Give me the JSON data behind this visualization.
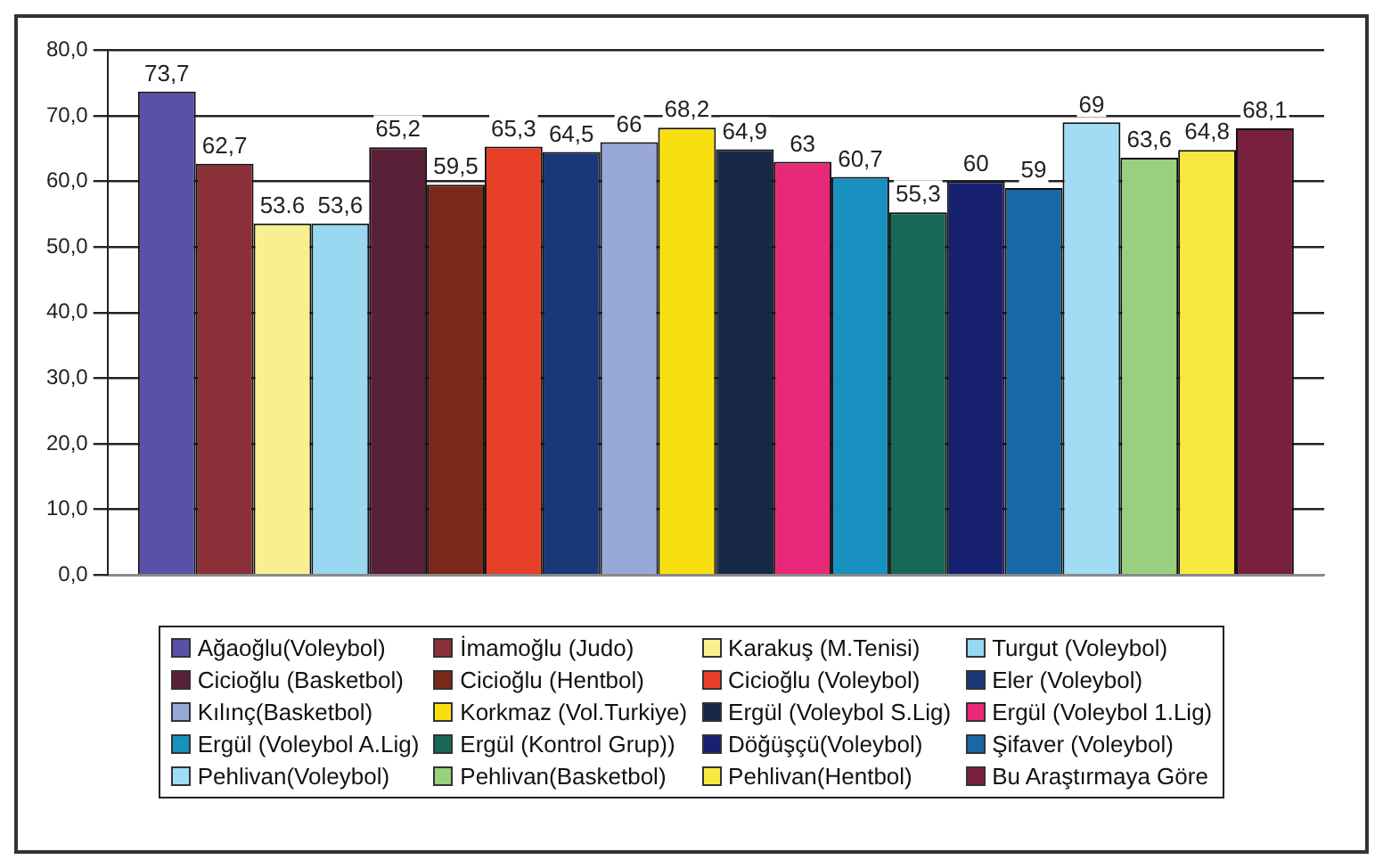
{
  "chart_data": {
    "type": "bar",
    "categories": [
      null
    ],
    "series": [
      {
        "name": "Ağaoğlu(Voleybol)",
        "color": "#5a50a8",
        "values": [
          73.7
        ],
        "value_labels": [
          "73,7"
        ]
      },
      {
        "name": "İmamoğlu (Judo)",
        "color": "#8b3038",
        "values": [
          62.7
        ],
        "value_labels": [
          "62,7"
        ]
      },
      {
        "name": "Karakuş (M.Tenisi)",
        "color": "#f8f090",
        "values": [
          53.6
        ],
        "value_labels": [
          "53.6"
        ]
      },
      {
        "name": "Turgut (Voleybol)",
        "color": "#98d8f0",
        "values": [
          53.6
        ],
        "value_labels": [
          "53,6"
        ]
      },
      {
        "name": "Cicioğlu (Basketbol)",
        "color": "#5a2038",
        "values": [
          65.2
        ],
        "value_labels": [
          "65,2"
        ]
      },
      {
        "name": "Cicioğlu (Hentbol)",
        "color": "#7a2818",
        "values": [
          59.5
        ],
        "value_labels": [
          "59,5"
        ]
      },
      {
        "name": "Cicioğlu (Voleybol)",
        "color": "#e84028",
        "values": [
          65.3
        ],
        "value_labels": [
          "65,3"
        ]
      },
      {
        "name": "Eler (Voleybol)",
        "color": "#183878",
        "values": [
          64.5
        ],
        "value_labels": [
          "64,5"
        ]
      },
      {
        "name": "Kılınç(Basketbol)",
        "color": "#98a8d8",
        "values": [
          66
        ],
        "value_labels": [
          "66"
        ]
      },
      {
        "name": "Korkmaz (Vol.Turkiye)",
        "color": "#f8e010",
        "values": [
          68.2
        ],
        "value_labels": [
          "68,2"
        ]
      },
      {
        "name": "Ergül (Voleybol S.Lig)",
        "color": "#182848",
        "values": [
          64.9
        ],
        "value_labels": [
          "64,9"
        ]
      },
      {
        "name": "Ergül (Voleybol 1.Lig)",
        "color": "#e82878",
        "values": [
          63
        ],
        "value_labels": [
          "63"
        ]
      },
      {
        "name": "Ergül (Voleybol A.Lig)",
        "color": "#1890c0",
        "values": [
          60.7
        ],
        "value_labels": [
          "60,7"
        ]
      },
      {
        "name": "Ergül (Kontrol Grup))",
        "color": "#186858",
        "values": [
          55.3
        ],
        "value_labels": [
          "55,3"
        ]
      },
      {
        "name": "Döğüşçü(Voleybol)",
        "color": "#182070",
        "values": [
          60
        ],
        "value_labels": [
          "60"
        ]
      },
      {
        "name": "Şifaver (Voleybol)",
        "color": "#1868a8",
        "values": [
          59
        ],
        "value_labels": [
          "59"
        ]
      },
      {
        "name": "Pehlivan(Voleybol)",
        "color": "#a0dcf4",
        "values": [
          69
        ],
        "value_labels": [
          "69"
        ]
      },
      {
        "name": "Pehlivan(Basketbol)",
        "color": "#98d080",
        "values": [
          63.6
        ],
        "value_labels": [
          "63,6"
        ]
      },
      {
        "name": "Pehlivan(Hentbol)",
        "color": "#f8e840",
        "values": [
          64.8
        ],
        "value_labels": [
          "64,8"
        ]
      },
      {
        "name": "Bu Araştırmaya Göre",
        "color": "#782040",
        "values": [
          68.1
        ],
        "value_labels": [
          "68,1"
        ]
      }
    ],
    "ylim": [
      0,
      80
    ],
    "yticks": [
      {
        "value": 0,
        "label": "0,0"
      },
      {
        "value": 10,
        "label": "10,0"
      },
      {
        "value": 20,
        "label": "20,0"
      },
      {
        "value": 30,
        "label": "30,0"
      },
      {
        "value": 40,
        "label": "40,0"
      },
      {
        "value": 50,
        "label": "50,0"
      },
      {
        "value": 60,
        "label": "60,0"
      },
      {
        "value": 70,
        "label": "70,0"
      },
      {
        "value": 80,
        "label": "80,0"
      }
    ],
    "grid": "y",
    "legend": "bottom"
  }
}
